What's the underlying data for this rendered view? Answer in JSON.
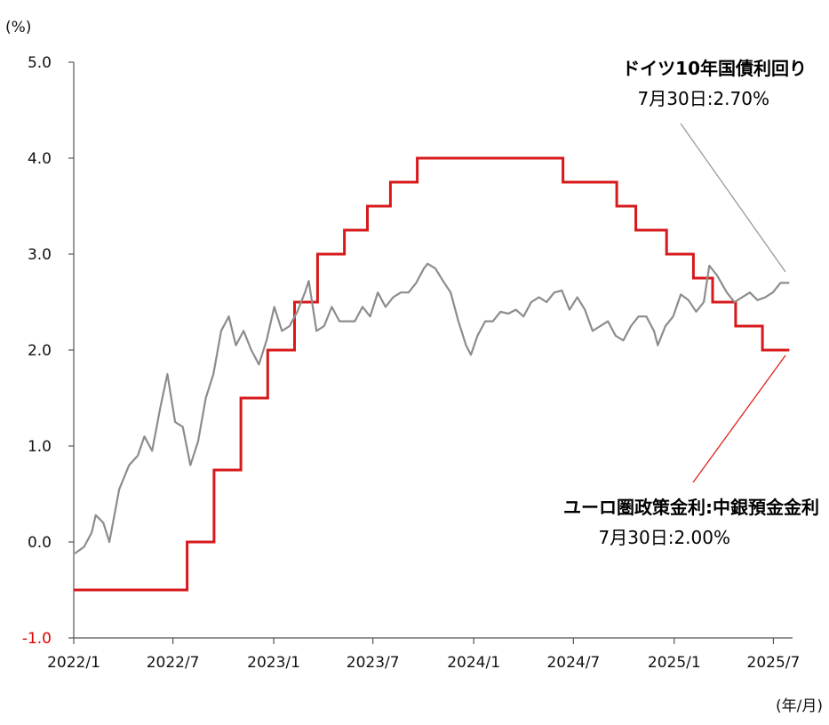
{
  "chart_data": {
    "type": "line",
    "y_unit_label": "(%)",
    "x_unit_label": "(年/月)",
    "ylim": [
      -1.0,
      5.0
    ],
    "y_ticks": [
      "5.0",
      "4.0",
      "3.0",
      "2.0",
      "1.0",
      "0.0",
      "-1.0"
    ],
    "y_tick_values": [
      5,
      4,
      3,
      2,
      1,
      0,
      -1
    ],
    "x_range": [
      "2022-01-01",
      "2025-08-05"
    ],
    "x_ticks": [
      "2022/1",
      "2022/7",
      "2023/1",
      "2023/7",
      "2024/1",
      "2024/7",
      "2025/1",
      "2025/7"
    ],
    "x_tick_dates": [
      "2022-01-01",
      "2022-07-01",
      "2023-01-01",
      "2023-07-01",
      "2024-01-01",
      "2024-07-01",
      "2025-01-01",
      "2025-07-01"
    ],
    "grid": false,
    "series": [
      {
        "name": "ユーロ圏政策金利:中銀預金金利",
        "color": "#d7191c",
        "step": true,
        "points": [
          [
            "2022-01-01",
            -0.5
          ],
          [
            "2022-07-27",
            0.0
          ],
          [
            "2022-09-14",
            0.75
          ],
          [
            "2022-11-02",
            1.5
          ],
          [
            "2022-12-21",
            2.0
          ],
          [
            "2023-02-08",
            2.5
          ],
          [
            "2023-03-22",
            3.0
          ],
          [
            "2023-05-10",
            3.25
          ],
          [
            "2023-06-21",
            3.5
          ],
          [
            "2023-08-02",
            3.75
          ],
          [
            "2023-09-20",
            4.0
          ],
          [
            "2024-06-12",
            3.75
          ],
          [
            "2024-09-18",
            3.5
          ],
          [
            "2024-10-23",
            3.25
          ],
          [
            "2024-12-18",
            3.0
          ],
          [
            "2025-02-05",
            2.75
          ],
          [
            "2025-03-12",
            2.5
          ],
          [
            "2025-04-23",
            2.25
          ],
          [
            "2025-06-11",
            2.0
          ],
          [
            "2025-07-30",
            2.0
          ]
        ]
      },
      {
        "name": "ドイツ10年国債利回り",
        "color": "#8c8c8c",
        "step": false,
        "points": [
          [
            "2022-01-03",
            -0.12
          ],
          [
            "2022-01-20",
            -0.05
          ],
          [
            "2022-02-03",
            0.1
          ],
          [
            "2022-02-10",
            0.28
          ],
          [
            "2022-02-24",
            0.2
          ],
          [
            "2022-03-07",
            0.0
          ],
          [
            "2022-03-25",
            0.55
          ],
          [
            "2022-04-12",
            0.8
          ],
          [
            "2022-04-28",
            0.9
          ],
          [
            "2022-05-10",
            1.1
          ],
          [
            "2022-05-24",
            0.95
          ],
          [
            "2022-06-08",
            1.4
          ],
          [
            "2022-06-21",
            1.75
          ],
          [
            "2022-07-05",
            1.25
          ],
          [
            "2022-07-19",
            1.2
          ],
          [
            "2022-08-02",
            0.8
          ],
          [
            "2022-08-16",
            1.05
          ],
          [
            "2022-08-30",
            1.5
          ],
          [
            "2022-09-13",
            1.75
          ],
          [
            "2022-09-27",
            2.2
          ],
          [
            "2022-10-11",
            2.35
          ],
          [
            "2022-10-24",
            2.05
          ],
          [
            "2022-11-07",
            2.2
          ],
          [
            "2022-11-21",
            2.0
          ],
          [
            "2022-12-05",
            1.85
          ],
          [
            "2022-12-19",
            2.1
          ],
          [
            "2023-01-02",
            2.45
          ],
          [
            "2023-01-16",
            2.2
          ],
          [
            "2023-01-30",
            2.25
          ],
          [
            "2023-02-13",
            2.4
          ],
          [
            "2023-02-27",
            2.6
          ],
          [
            "2023-03-06",
            2.72
          ],
          [
            "2023-03-20",
            2.2
          ],
          [
            "2023-04-03",
            2.25
          ],
          [
            "2023-04-17",
            2.45
          ],
          [
            "2023-05-01",
            2.3
          ],
          [
            "2023-05-15",
            2.3
          ],
          [
            "2023-05-29",
            2.3
          ],
          [
            "2023-06-12",
            2.45
          ],
          [
            "2023-06-26",
            2.35
          ],
          [
            "2023-07-10",
            2.6
          ],
          [
            "2023-07-24",
            2.45
          ],
          [
            "2023-08-07",
            2.55
          ],
          [
            "2023-08-21",
            2.6
          ],
          [
            "2023-09-04",
            2.6
          ],
          [
            "2023-09-18",
            2.7
          ],
          [
            "2023-10-02",
            2.85
          ],
          [
            "2023-10-09",
            2.9
          ],
          [
            "2023-10-23",
            2.85
          ],
          [
            "2023-11-06",
            2.72
          ],
          [
            "2023-11-20",
            2.6
          ],
          [
            "2023-12-04",
            2.3
          ],
          [
            "2023-12-18",
            2.05
          ],
          [
            "2023-12-27",
            1.95
          ],
          [
            "2024-01-08",
            2.15
          ],
          [
            "2024-01-22",
            2.3
          ],
          [
            "2024-02-05",
            2.3
          ],
          [
            "2024-02-19",
            2.4
          ],
          [
            "2024-03-04",
            2.38
          ],
          [
            "2024-03-18",
            2.42
          ],
          [
            "2024-04-01",
            2.35
          ],
          [
            "2024-04-15",
            2.5
          ],
          [
            "2024-04-29",
            2.55
          ],
          [
            "2024-05-13",
            2.5
          ],
          [
            "2024-05-27",
            2.6
          ],
          [
            "2024-06-10",
            2.62
          ],
          [
            "2024-06-24",
            2.42
          ],
          [
            "2024-07-08",
            2.55
          ],
          [
            "2024-07-22",
            2.42
          ],
          [
            "2024-08-05",
            2.2
          ],
          [
            "2024-08-19",
            2.25
          ],
          [
            "2024-09-02",
            2.3
          ],
          [
            "2024-09-16",
            2.15
          ],
          [
            "2024-09-30",
            2.1
          ],
          [
            "2024-10-14",
            2.25
          ],
          [
            "2024-10-28",
            2.35
          ],
          [
            "2024-11-11",
            2.35
          ],
          [
            "2024-11-25",
            2.2
          ],
          [
            "2024-12-02",
            2.05
          ],
          [
            "2024-12-16",
            2.25
          ],
          [
            "2024-12-30",
            2.35
          ],
          [
            "2025-01-13",
            2.58
          ],
          [
            "2025-01-27",
            2.52
          ],
          [
            "2025-02-10",
            2.4
          ],
          [
            "2025-02-24",
            2.5
          ],
          [
            "2025-03-06",
            2.88
          ],
          [
            "2025-03-20",
            2.78
          ],
          [
            "2025-04-07",
            2.6
          ],
          [
            "2025-04-21",
            2.5
          ],
          [
            "2025-05-05",
            2.55
          ],
          [
            "2025-05-19",
            2.6
          ],
          [
            "2025-06-02",
            2.52
          ],
          [
            "2025-06-16",
            2.55
          ],
          [
            "2025-06-30",
            2.6
          ],
          [
            "2025-07-14",
            2.7
          ],
          [
            "2025-07-30",
            2.7
          ]
        ]
      }
    ],
    "annotations": [
      {
        "name": "bund-annotation",
        "title": "ドイツ10年国債利回り",
        "value": "7月30日:2.70%",
        "target_date": "2025-07-30",
        "target_value": 2.7,
        "line_color": "#999999"
      },
      {
        "name": "deposit-rate-annotation",
        "title": "ユーロ圏政策金利:中銀預金金利",
        "value": "7月30日:2.00%",
        "target_date": "2025-07-30",
        "target_value": 2.0,
        "line_color": "#e02020"
      }
    ]
  }
}
